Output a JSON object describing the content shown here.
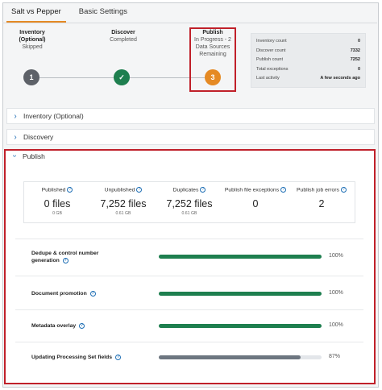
{
  "tabs": [
    {
      "label": "Salt vs Pepper",
      "active": true
    },
    {
      "label": "Basic Settings",
      "active": false
    }
  ],
  "steps": [
    {
      "title": "Inventory (Optional)",
      "status": "Skipped",
      "badge": "1",
      "color": "#5d6168"
    },
    {
      "title": "Discover",
      "status": "Completed",
      "badge": "✓",
      "color": "#1e7f4f"
    },
    {
      "title": "Publish",
      "status": "In Progress - 2 Data Sources Remaining",
      "badge": "3",
      "color": "#e58a24"
    }
  ],
  "summary": [
    {
      "label": "Inventory count",
      "value": "0"
    },
    {
      "label": "Discover count",
      "value": "7332"
    },
    {
      "label": "Publish count",
      "value": "7252"
    },
    {
      "label": "Total exceptions",
      "value": "0"
    },
    {
      "label": "Last activity",
      "value": "A few seconds ago"
    }
  ],
  "sections": {
    "inventory": "Inventory (Optional)",
    "discovery": "Discovery",
    "publish": "Publish"
  },
  "stats": [
    {
      "label": "Published",
      "value": "0 files",
      "sub": "0 GB",
      "info": true
    },
    {
      "label": "Unpublished",
      "value": "7,252 files",
      "sub": "0.61 GB",
      "info": true
    },
    {
      "label": "Duplicates",
      "value": "7,252 files",
      "sub": "0.61 GB",
      "info": true
    },
    {
      "label": "Publish file exceptions",
      "value": "0",
      "sub": "",
      "info": true
    },
    {
      "label": "Publish job errors",
      "value": "2",
      "sub": "",
      "info": true
    }
  ],
  "progress": [
    {
      "label": "Dedupe & control number generation",
      "pct_text": "100%",
      "fraction": 1.0,
      "color": "#1e7f4f"
    },
    {
      "label": "Document promotion",
      "pct_text": "100%",
      "fraction": 1.0,
      "color": "#1e7f4f"
    },
    {
      "label": "Metadata overlay",
      "pct_text": "100%",
      "fraction": 1.0,
      "color": "#1e7f4f"
    },
    {
      "label": "Updating Processing Set fields",
      "pct_text": "87%",
      "fraction": 0.87,
      "color": "#6d7680"
    }
  ]
}
